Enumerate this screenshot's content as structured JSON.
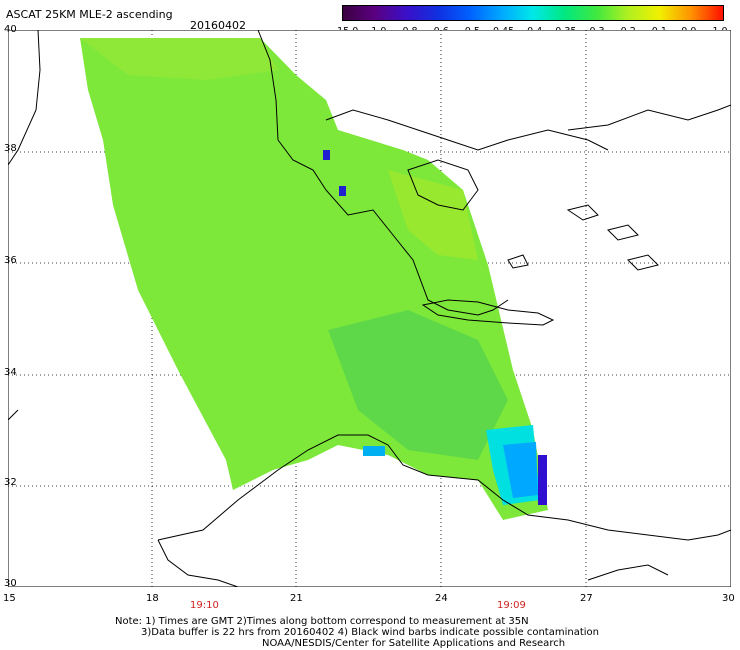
{
  "header": {
    "title": "ASCAT 25KM MLE-2 ascending",
    "date": "20160402"
  },
  "colorbar": {
    "labels": [
      "-15.0",
      "-1.0",
      "-0.8",
      "-0.6",
      "-0.5",
      "-0.45",
      "-0.4",
      "-0.35",
      "-0.3",
      "-0.2",
      "-0.1",
      "0.0",
      "1.0"
    ],
    "colors": [
      "#3a0040",
      "#5a0080",
      "#3a10c8",
      "#1030e0",
      "#0060ff",
      "#00a8ff",
      "#00e8e8",
      "#00e880",
      "#40e840",
      "#b0f020",
      "#f0f000",
      "#ff9000",
      "#ff1000"
    ]
  },
  "map": {
    "lon_range": [
      15,
      30
    ],
    "lat_range": [
      30,
      40
    ],
    "x_ticks": [
      "15",
      "18",
      "21",
      "24",
      "27",
      "30"
    ],
    "y_ticks": [
      "40",
      "38",
      "36",
      "34",
      "32",
      "30"
    ],
    "swath_color": "#7de83a",
    "low_value_color": "#00b8ff"
  },
  "times": [
    "19:10",
    "19:09"
  ],
  "footer": {
    "line1": "Note: 1) Times are GMT 2)Times along bottom correspond to measurement at 35N",
    "line2": "3)Data buffer is 22 hrs from 20160402 4) Black wind barbs indicate possible contamination",
    "line3": "NOAA/NESDIS/Center for Satellite Applications and Research"
  }
}
